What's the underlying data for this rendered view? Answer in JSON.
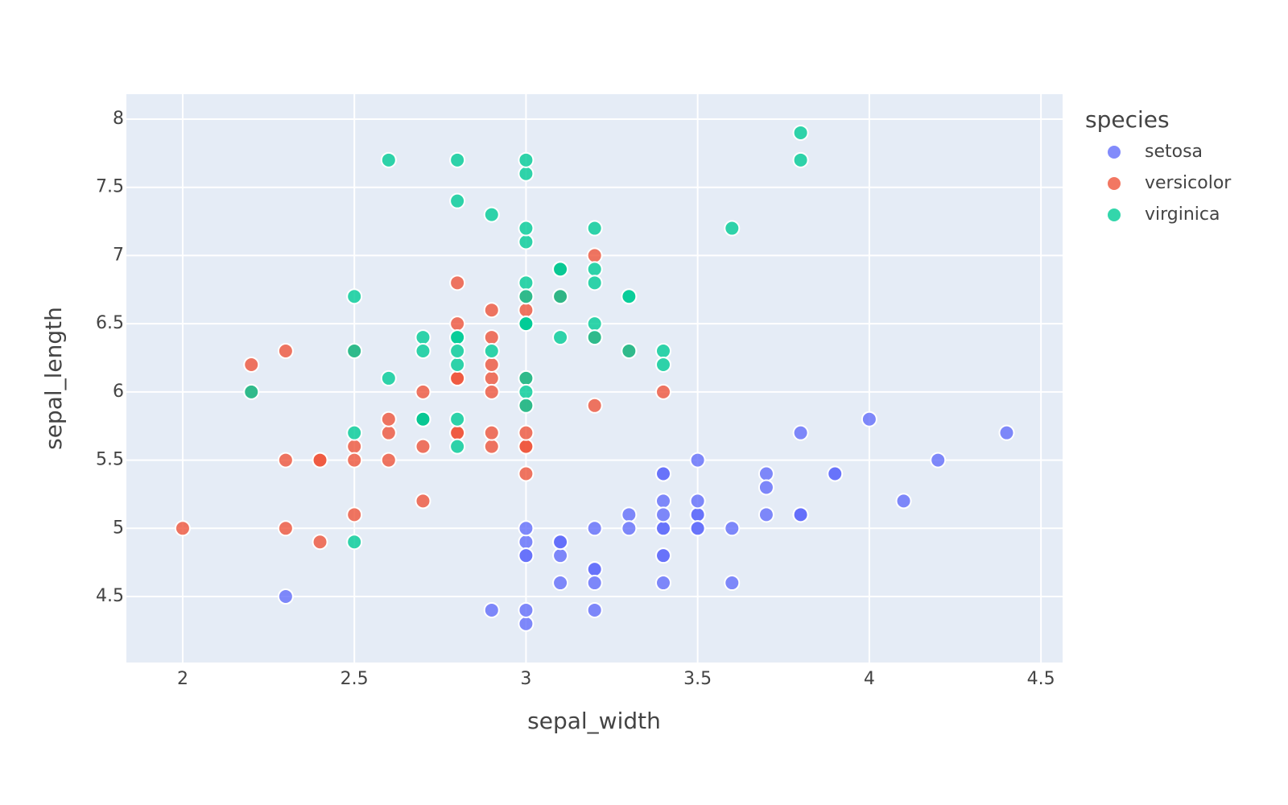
{
  "chart_data": {
    "type": "scatter",
    "x_label": "sepal_width",
    "y_label": "sepal_length",
    "legend_title": "species",
    "xlim": [
      1.836,
      4.563
    ],
    "ylim": [
      4.016,
      8.183
    ],
    "xticks": [
      2,
      2.5,
      3,
      3.5,
      4,
      4.5
    ],
    "yticks": [
      4.5,
      5,
      5.5,
      6,
      6.5,
      7,
      7.5,
      8
    ],
    "grid": true,
    "marker_opacity": 0.8,
    "series": [
      {
        "name": "setosa",
        "color": "#636efa",
        "x": [
          3.5,
          3.0,
          3.2,
          3.1,
          3.6,
          3.9,
          3.4,
          3.4,
          2.9,
          3.1,
          3.7,
          3.4,
          3.0,
          3.0,
          4.0,
          4.4,
          3.9,
          3.5,
          3.8,
          3.8,
          3.4,
          3.7,
          3.6,
          3.3,
          3.4,
          3.0,
          3.4,
          3.5,
          3.4,
          3.2,
          3.1,
          3.4,
          4.1,
          4.2,
          3.1,
          3.2,
          3.5,
          3.1,
          3.0,
          3.4,
          3.5,
          2.3,
          3.2,
          3.5,
          3.8,
          3.0,
          3.8,
          3.2,
          3.7,
          3.3
        ],
        "y": [
          5.1,
          4.9,
          4.7,
          4.6,
          5.0,
          5.4,
          4.6,
          5.0,
          4.4,
          4.9,
          5.4,
          4.8,
          4.8,
          4.3,
          5.8,
          5.7,
          5.4,
          5.1,
          5.7,
          5.1,
          5.4,
          5.1,
          4.6,
          5.1,
          4.8,
          5.0,
          5.0,
          5.2,
          5.2,
          4.7,
          4.8,
          5.4,
          5.2,
          5.5,
          4.9,
          5.0,
          5.5,
          4.9,
          4.4,
          5.1,
          5.0,
          4.5,
          4.4,
          5.0,
          5.1,
          4.8,
          5.1,
          4.6,
          5.3,
          5.0
        ]
      },
      {
        "name": "versicolor",
        "color": "#EF553B",
        "x": [
          3.2,
          3.2,
          3.1,
          2.3,
          2.8,
          2.8,
          3.3,
          2.4,
          2.9,
          2.7,
          2.0,
          3.0,
          2.2,
          2.9,
          2.9,
          3.1,
          3.0,
          2.7,
          2.2,
          2.5,
          3.2,
          2.8,
          2.5,
          2.8,
          2.9,
          3.0,
          2.8,
          3.0,
          2.9,
          2.6,
          2.4,
          2.4,
          2.7,
          2.7,
          3.0,
          3.4,
          3.1,
          2.3,
          3.0,
          2.5,
          2.6,
          3.0,
          2.6,
          2.3,
          2.7,
          3.0,
          2.9,
          2.9,
          2.5,
          2.8
        ],
        "y": [
          7.0,
          6.4,
          6.9,
          5.5,
          6.5,
          5.7,
          6.3,
          4.9,
          6.6,
          5.2,
          5.0,
          5.9,
          6.0,
          6.1,
          5.6,
          6.7,
          5.6,
          5.8,
          6.2,
          5.6,
          5.9,
          6.1,
          6.3,
          6.1,
          6.4,
          6.6,
          6.8,
          6.7,
          6.0,
          5.7,
          5.5,
          5.5,
          5.8,
          6.0,
          5.4,
          6.0,
          6.7,
          6.3,
          5.6,
          5.5,
          5.5,
          6.1,
          5.8,
          5.0,
          5.6,
          5.7,
          5.7,
          6.2,
          5.1,
          5.7
        ]
      },
      {
        "name": "virginica",
        "color": "#00cc96",
        "x": [
          3.3,
          2.7,
          3.0,
          2.9,
          3.0,
          3.0,
          2.5,
          2.9,
          2.5,
          3.6,
          3.2,
          2.7,
          3.0,
          2.5,
          2.8,
          3.2,
          3.0,
          3.8,
          2.6,
          2.2,
          3.2,
          2.8,
          2.8,
          2.7,
          3.3,
          3.2,
          2.8,
          3.0,
          2.8,
          3.0,
          2.8,
          3.8,
          2.8,
          2.8,
          2.6,
          3.0,
          3.4,
          3.1,
          3.0,
          3.1,
          3.1,
          3.1,
          2.7,
          3.2,
          3.3,
          3.0,
          2.5,
          3.0,
          3.4,
          3.0
        ],
        "y": [
          6.3,
          5.8,
          7.1,
          6.3,
          6.5,
          7.6,
          4.9,
          7.3,
          6.7,
          7.2,
          6.5,
          6.4,
          6.8,
          5.7,
          5.8,
          6.4,
          6.5,
          7.7,
          7.7,
          6.0,
          6.9,
          5.6,
          7.7,
          6.3,
          6.7,
          7.2,
          6.2,
          6.1,
          6.4,
          7.2,
          7.4,
          7.9,
          6.4,
          6.3,
          6.1,
          7.7,
          6.3,
          6.4,
          6.0,
          6.9,
          6.7,
          6.9,
          5.8,
          6.8,
          6.7,
          6.7,
          6.3,
          6.5,
          6.2,
          5.9
        ]
      }
    ]
  }
}
